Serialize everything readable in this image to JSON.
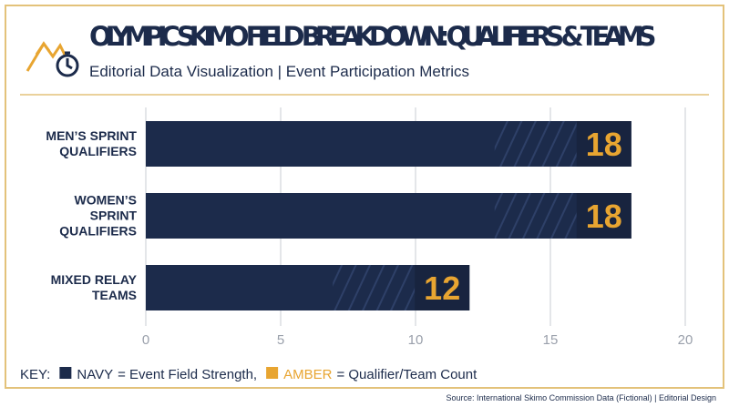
{
  "chart_data": {
    "type": "bar",
    "orientation": "horizontal",
    "title": "OLYMPIC SKIMO FIELD BREAKDOWN: QUALIFIERS & TEAMS",
    "subtitle": "Editorial Data Visualization | Event Participation Metrics",
    "categories": [
      "MEN’S SPRINT QUALIFIERS",
      "WOMEN’S SPRINT QUALIFIERS",
      "MIXED RELAY TEAMS"
    ],
    "values": [
      18,
      18,
      12
    ],
    "color": "#1c2b4b",
    "label_color": "#e8a531",
    "xlim": [
      0,
      20
    ],
    "xticks": [
      0,
      5,
      10,
      15,
      20
    ],
    "grid": true,
    "key": {
      "label": "KEY:",
      "items": [
        {
          "name": "NAVY",
          "text": "= Event Field Strength,",
          "color": "#1c2b4b"
        },
        {
          "name": "AMBER",
          "text": "= Qualifier/Team Count",
          "color": "#e8a531"
        }
      ]
    },
    "source": "Source: International Skimo Commission Data (Fictional) | Editorial Design"
  }
}
